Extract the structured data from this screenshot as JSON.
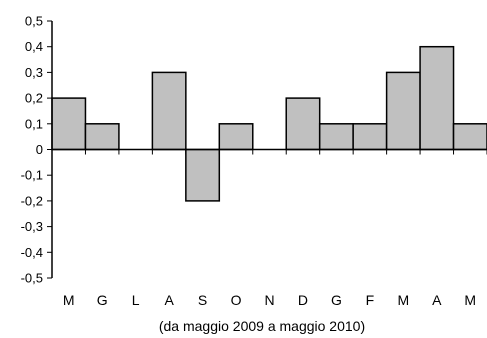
{
  "chart_data": {
    "type": "bar",
    "categories": [
      "M",
      "G",
      "L",
      "A",
      "S",
      "O",
      "N",
      "D",
      "G",
      "F",
      "M",
      "A",
      "M"
    ],
    "values": [
      0.2,
      0.1,
      0,
      0.3,
      -0.2,
      0.1,
      0,
      0.2,
      0.1,
      0.1,
      0.3,
      0.4,
      0.1
    ],
    "ylim": [
      -0.5,
      0.5
    ],
    "yticks": [
      "0,5",
      "0,4",
      "0,3",
      "0,2",
      "0,1",
      "0",
      "-0,1",
      "-0,2",
      "-0,3",
      "-0,4",
      "-0,5"
    ],
    "yticks_values": [
      0.5,
      0.4,
      0.3,
      0.2,
      0.1,
      0,
      -0.1,
      -0.2,
      -0.3,
      -0.4,
      -0.5
    ],
    "xlabel": "(da  maggio 2009  a maggio 2010)",
    "title": "",
    "ylabel": "",
    "grid": false,
    "legend": "none",
    "colors": {
      "bar_fill": "#c0c0c0",
      "bar_stroke": "#000000",
      "axis": "#000000"
    }
  }
}
